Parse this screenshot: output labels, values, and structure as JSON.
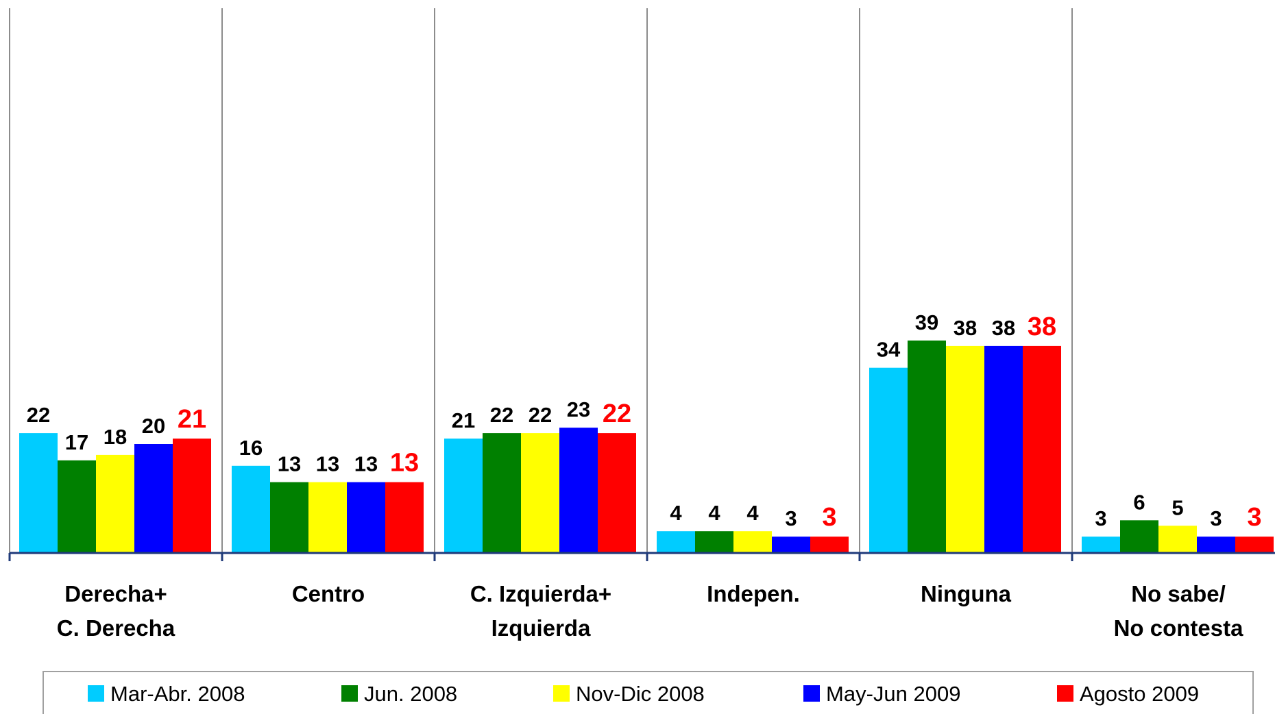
{
  "chart_data": {
    "type": "bar",
    "categories": [
      [
        "Derecha+",
        "C. Derecha"
      ],
      [
        "Centro"
      ],
      [
        "C. Izquierda+",
        "Izquierda"
      ],
      [
        "Indepen."
      ],
      [
        "Ninguna"
      ],
      [
        "No sabe/",
        "No contesta"
      ]
    ],
    "ylim": [
      0,
      100
    ],
    "series": [
      {
        "name": "Mar-Abr. 2008",
        "color": "#00ccff",
        "label_color": "#000000",
        "values": [
          22,
          16,
          21,
          4,
          34,
          3
        ]
      },
      {
        "name": "Jun. 2008",
        "color": "#008000",
        "label_color": "#000000",
        "values": [
          17,
          13,
          22,
          4,
          39,
          6
        ]
      },
      {
        "name": "Nov-Dic 2008",
        "color": "#ffff00",
        "label_color": "#000000",
        "values": [
          18,
          13,
          22,
          4,
          38,
          5
        ]
      },
      {
        "name": "May-Jun 2009",
        "color": "#0000ff",
        "label_color": "#000000",
        "values": [
          20,
          13,
          23,
          3,
          38,
          3
        ]
      },
      {
        "name": "Agosto 2009",
        "color": "#ff0000",
        "label_color": "#ff0000",
        "values": [
          21,
          13,
          22,
          3,
          38,
          3
        ]
      }
    ]
  }
}
